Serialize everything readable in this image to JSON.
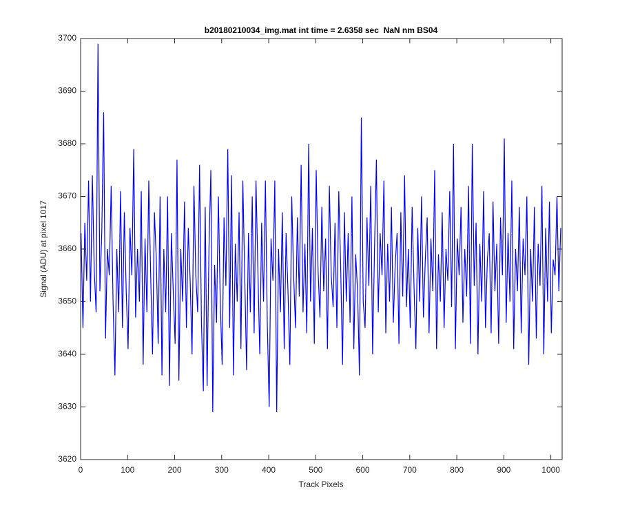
{
  "chart_data": {
    "type": "line",
    "title": "b20180210034_img.mat int time = 2.6358 sec  NaN nm BS04",
    "x_label": "Track Pixels",
    "y_label": "Signal (ADU) at pixel 1017",
    "color": "#0000ff",
    "xlim": [
      0,
      1024
    ],
    "xticks": [
      0,
      100,
      200,
      300,
      400,
      500,
      600,
      700,
      800,
      900,
      1000
    ],
    "ylim": [
      3620,
      3700
    ],
    "yticks": [
      3620,
      3630,
      3640,
      3650,
      3660,
      3670,
      3680,
      3690,
      3700
    ],
    "grid": false,
    "x": [
      1,
      5,
      9,
      13,
      17,
      21,
      25,
      29,
      33,
      37,
      41,
      45,
      49,
      53,
      57,
      61,
      65,
      69,
      73,
      77,
      81,
      85,
      89,
      93,
      97,
      101,
      105,
      109,
      113,
      117,
      121,
      125,
      129,
      133,
      137,
      141,
      145,
      149,
      153,
      157,
      161,
      165,
      169,
      173,
      177,
      181,
      185,
      189,
      193,
      197,
      201,
      205,
      209,
      213,
      217,
      221,
      225,
      229,
      233,
      237,
      241,
      245,
      249,
      253,
      257,
      261,
      265,
      269,
      273,
      277,
      281,
      285,
      289,
      293,
      297,
      301,
      305,
      309,
      313,
      317,
      321,
      325,
      329,
      333,
      337,
      341,
      345,
      349,
      353,
      357,
      361,
      365,
      369,
      373,
      377,
      381,
      385,
      389,
      393,
      397,
      401,
      405,
      409,
      413,
      417,
      421,
      425,
      429,
      433,
      437,
      441,
      445,
      449,
      453,
      457,
      461,
      465,
      469,
      473,
      477,
      481,
      485,
      489,
      493,
      497,
      501,
      505,
      509,
      513,
      517,
      521,
      525,
      529,
      533,
      537,
      541,
      545,
      549,
      553,
      557,
      561,
      565,
      569,
      573,
      577,
      581,
      585,
      589,
      593,
      597,
      601,
      605,
      609,
      613,
      617,
      621,
      625,
      629,
      633,
      637,
      641,
      645,
      649,
      653,
      657,
      661,
      665,
      669,
      673,
      677,
      681,
      685,
      689,
      693,
      697,
      701,
      705,
      709,
      713,
      717,
      721,
      725,
      729,
      733,
      737,
      741,
      745,
      749,
      753,
      757,
      761,
      765,
      769,
      773,
      777,
      781,
      785,
      789,
      793,
      797,
      801,
      805,
      809,
      813,
      817,
      821,
      825,
      829,
      833,
      837,
      841,
      845,
      849,
      853,
      857,
      861,
      865,
      869,
      873,
      877,
      881,
      885,
      889,
      893,
      897,
      901,
      905,
      909,
      913,
      917,
      921,
      925,
      929,
      933,
      937,
      941,
      945,
      949,
      953,
      957,
      961,
      965,
      969,
      973,
      977,
      981,
      985,
      989,
      993,
      997,
      1001,
      1005,
      1009,
      1013,
      1017,
      1021
    ],
    "values": [
      3663,
      3645,
      3665,
      3654,
      3673,
      3650,
      3674,
      3656,
      3648,
      3699,
      3652,
      3663,
      3686,
      3643,
      3660,
      3655,
      3672,
      3650,
      3636,
      3660,
      3648,
      3671,
      3645,
      3667,
      3652,
      3641,
      3664,
      3655,
      3679,
      3647,
      3660,
      3650,
      3671,
      3638,
      3662,
      3648,
      3673,
      3655,
      3640,
      3667,
      3658,
      3642,
      3670,
      3636,
      3660,
      3648,
      3670,
      3634,
      3663,
      3652,
      3642,
      3677,
      3635,
      3660,
      3650,
      3669,
      3645,
      3664,
      3654,
      3640,
      3672,
      3655,
      3648,
      3676,
      3646,
      3633,
      3668,
      3634,
      3660,
      3675,
      3629,
      3657,
      3646,
      3670,
      3650,
      3638,
      3666,
      3653,
      3679,
      3645,
      3674,
      3636,
      3661,
      3650,
      3667,
      3641,
      3673,
      3655,
      3637,
      3663,
      3648,
      3670,
      3644,
      3673,
      3656,
      3640,
      3665,
      3650,
      3673,
      3646,
      3630,
      3662,
      3654,
      3673,
      3629,
      3660,
      3648,
      3667,
      3641,
      3663,
      3652,
      3638,
      3670,
      3655,
      3645,
      3666,
      3651,
      3676,
      3648,
      3661,
      3644,
      3680,
      3650,
      3664,
      3642,
      3675,
      3656,
      3647,
      3668,
      3652,
      3662,
      3641,
      3672,
      3655,
      3649,
      3665,
      3645,
      3671,
      3657,
      3638,
      3667,
      3650,
      3663,
      3646,
      3670,
      3641,
      3659,
      3652,
      3636,
      3685,
      3650,
      3645,
      3666,
      3653,
      3672,
      3640,
      3660,
      3677,
      3648,
      3663,
      3655,
      3673,
      3644,
      3661,
      3650,
      3668,
      3646,
      3657,
      3663,
      3642,
      3667,
      3651,
      3674,
      3649,
      3660,
      3645,
      3668,
      3653,
      3641,
      3664,
      3650,
      3670,
      3647,
      3658,
      3666,
      3644,
      3662,
      3652,
      3675,
      3641,
      3659,
      3650,
      3667,
      3645,
      3660,
      3654,
      3671,
      3649,
      3680,
      3641,
      3662,
      3655,
      3668,
      3646,
      3660,
      3651,
      3672,
      3642,
      3680,
      3653,
      3665,
      3640,
      3661,
      3650,
      3671,
      3645,
      3658,
      3663,
      3644,
      3669,
      3652,
      3661,
      3642,
      3666,
      3655,
      3681,
      3646,
      3663,
      3650,
      3673,
      3641,
      3660,
      3652,
      3668,
      3644,
      3662,
      3655,
      3670,
      3638,
      3660,
      3650,
      3668,
      3643,
      3661,
      3653,
      3672,
      3640,
      3664,
      3650,
      3669,
      3644,
      3658,
      3655,
      3670,
      3652,
      3664
    ]
  }
}
